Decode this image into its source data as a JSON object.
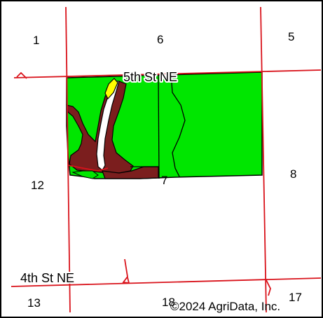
{
  "map": {
    "colors": {
      "road": "#d9131b",
      "green_soil": "#00e600",
      "brown_soil": "#7b1e1e",
      "yellow_soil": "#ffff00",
      "white_soil": "#ffffff",
      "outline": "#000000"
    },
    "sections": {
      "s1": "1",
      "s6": "6",
      "s5": "5",
      "s12": "12",
      "s7": "7",
      "s8": "8",
      "s13": "13",
      "s18": "18",
      "s17": "17"
    },
    "roads": {
      "north": "5th St NE",
      "south": "4th St NE"
    },
    "copyright": "©2024 AgriData, Inc."
  }
}
